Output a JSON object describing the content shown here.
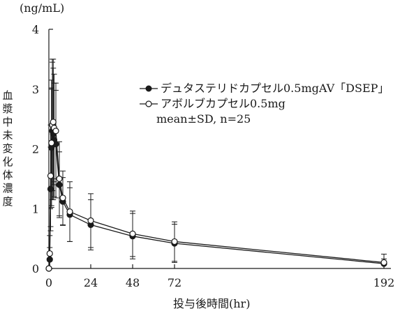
{
  "chart_data": {
    "type": "line",
    "unit_label": "(ng/mL)",
    "ylabel": "血漿中未変化体濃度",
    "xlabel": "投与後時間(hr)",
    "x_ticks": [
      0,
      24,
      48,
      72,
      192
    ],
    "y_ticks": [
      0,
      1,
      2,
      3,
      4
    ],
    "xlim": [
      0,
      196
    ],
    "ylim": [
      0,
      4
    ],
    "grid": false,
    "legend_position": "top-right",
    "legend_note": "mean±SD, n=25",
    "series": [
      {
        "name": "デュタステリドカプセル0.5mgAV「DSEP」",
        "marker": "filled-circle",
        "color": "#1a1a1a",
        "x": [
          0,
          0.5,
          1,
          1.5,
          2,
          2.5,
          3,
          4,
          6,
          8,
          12,
          24,
          48,
          72,
          192
        ],
        "y": [
          0,
          0.15,
          1.33,
          2.02,
          2.3,
          2.25,
          2.15,
          2.08,
          1.4,
          1.12,
          0.9,
          0.73,
          0.54,
          0.42,
          0.08
        ],
        "sd": [
          0,
          0.2,
          0.7,
          1.0,
          1.15,
          1.1,
          0.95,
          0.9,
          0.55,
          0.4,
          0.45,
          0.42,
          0.38,
          0.32,
          0.08
        ]
      },
      {
        "name": "アボルブカプセル0.5mg",
        "marker": "open-circle",
        "color": "#1a1a1a",
        "x": [
          0,
          0.5,
          1,
          1.5,
          2,
          2.5,
          3,
          4,
          6,
          8,
          12,
          24,
          48,
          72,
          192
        ],
        "y": [
          0,
          0.25,
          1.55,
          2.1,
          2.4,
          2.45,
          2.35,
          2.3,
          1.5,
          1.18,
          0.95,
          0.8,
          0.58,
          0.45,
          0.1
        ],
        "sd": [
          0,
          0.3,
          0.85,
          1.05,
          1.1,
          1.05,
          0.9,
          0.8,
          0.62,
          0.45,
          0.5,
          0.45,
          0.38,
          0.33,
          0.14
        ]
      }
    ]
  }
}
